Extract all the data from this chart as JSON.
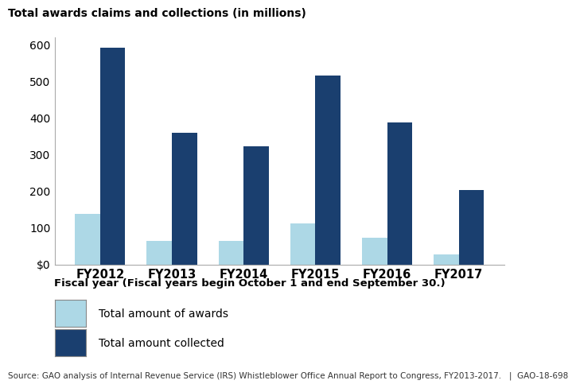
{
  "categories": [
    "FY2012",
    "FY2013",
    "FY2014",
    "FY2015",
    "FY2016",
    "FY2017"
  ],
  "awards": [
    138,
    65,
    65,
    112,
    72,
    28
  ],
  "collected": [
    592,
    358,
    322,
    515,
    388,
    203
  ],
  "awards_color": "#add8e6",
  "collected_color": "#1a3f6f",
  "title": "Total awards claims and collections (in millions)",
  "xlabel": "Fiscal year (Fiscal years begin October 1 and end September 30.)",
  "ylim": [
    0,
    620
  ],
  "yticks": [
    0,
    100,
    200,
    300,
    400,
    500,
    600
  ],
  "ytick_labels": [
    "$0",
    "100",
    "200",
    "300",
    "400",
    "500",
    "600"
  ],
  "legend_awards": "Total amount of awards",
  "legend_collected": "Total amount collected",
  "source": "Source: GAO analysis of Internal Revenue Service (IRS) Whistleblower Office Annual Report to Congress, FY2013-2017.   |  GAO-18-698",
  "bar_width": 0.35,
  "background_color": "#ffffff"
}
